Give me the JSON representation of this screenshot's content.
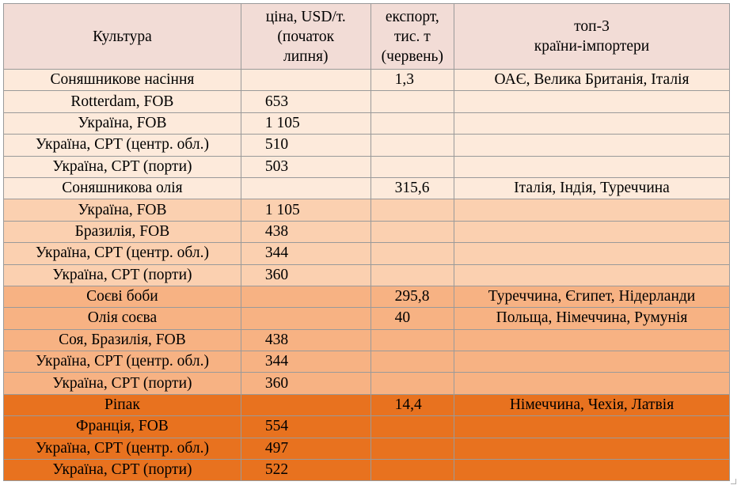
{
  "table": {
    "headers": {
      "crop": [
        "Культура"
      ],
      "price": [
        "ціна, USD/т.",
        "(початок",
        "липня)"
      ],
      "export": [
        "експорт,",
        "тис. т",
        "(червень)"
      ],
      "top": [
        "топ-3",
        "країни-імпортери"
      ]
    },
    "colors": {
      "header": "#f2dcd6",
      "tier1": "#fdeadb",
      "tier2": "#fbd0b0",
      "tier3": "#f7b283",
      "tier4": "#e8721f"
    },
    "rows": [
      {
        "crop": "Соняшникове насіння",
        "price": "",
        "export": "1,3",
        "top": "ОАЄ, Велика Британія, Італія",
        "tier": "tier1"
      },
      {
        "crop": "Rotterdam, FOB",
        "price": "653",
        "export": "",
        "top": "",
        "tier": "tier1"
      },
      {
        "crop": "Україна, FOB",
        "price": "1 105",
        "export": "",
        "top": "",
        "tier": "tier1"
      },
      {
        "crop": "Україна, CPT (центр. обл.)",
        "price": "510",
        "export": "",
        "top": "",
        "tier": "tier1"
      },
      {
        "crop": "Україна, CPT (порти)",
        "price": "503",
        "export": "",
        "top": "",
        "tier": "tier1"
      },
      {
        "crop": "Соняшникова олія",
        "price": "",
        "export": "315,6",
        "top": "Італія, Індія, Туреччина",
        "tier": "tier1"
      },
      {
        "crop": "Україна, FOB",
        "price": "1 105",
        "export": "",
        "top": "",
        "tier": "tier2"
      },
      {
        "crop": "Бразилія, FOB",
        "price": "438",
        "export": "",
        "top": "",
        "tier": "tier2"
      },
      {
        "crop": "Україна, CPT (центр. обл.)",
        "price": "344",
        "export": "",
        "top": "",
        "tier": "tier2"
      },
      {
        "crop": "Україна, CPT (порти)",
        "price": "360",
        "export": "",
        "top": "",
        "tier": "tier2"
      },
      {
        "crop": "Соєві боби",
        "price": "",
        "export": "295,8",
        "top": "Туреччина, Єгипет, Нідерланди",
        "tier": "tier3"
      },
      {
        "crop": "Олія соєва",
        "price": "",
        "export": "40",
        "top": "Польща, Німеччина, Румунія",
        "tier": "tier3"
      },
      {
        "crop": "Соя, Бразилія, FOB",
        "price": "438",
        "export": "",
        "top": "",
        "tier": "tier3"
      },
      {
        "crop": "Україна, CPT (центр. обл.)",
        "price": "344",
        "export": "",
        "top": "",
        "tier": "tier3"
      },
      {
        "crop": "Україна, CPT (порти)",
        "price": "360",
        "export": "",
        "top": "",
        "tier": "tier3"
      },
      {
        "crop": "Ріпак",
        "price": "",
        "export": "14,4",
        "top": "Німеччина, Чехія, Латвія",
        "tier": "tier4"
      },
      {
        "crop": "Франція, FOB",
        "price": "554",
        "export": "",
        "top": "",
        "tier": "tier4"
      },
      {
        "crop": "Україна, CPT (центр. обл.)",
        "price": "497",
        "export": "",
        "top": "",
        "tier": "tier4"
      },
      {
        "crop": "Україна, CPT (порти)",
        "price": "522",
        "export": "",
        "top": "",
        "tier": "tier4"
      }
    ]
  }
}
